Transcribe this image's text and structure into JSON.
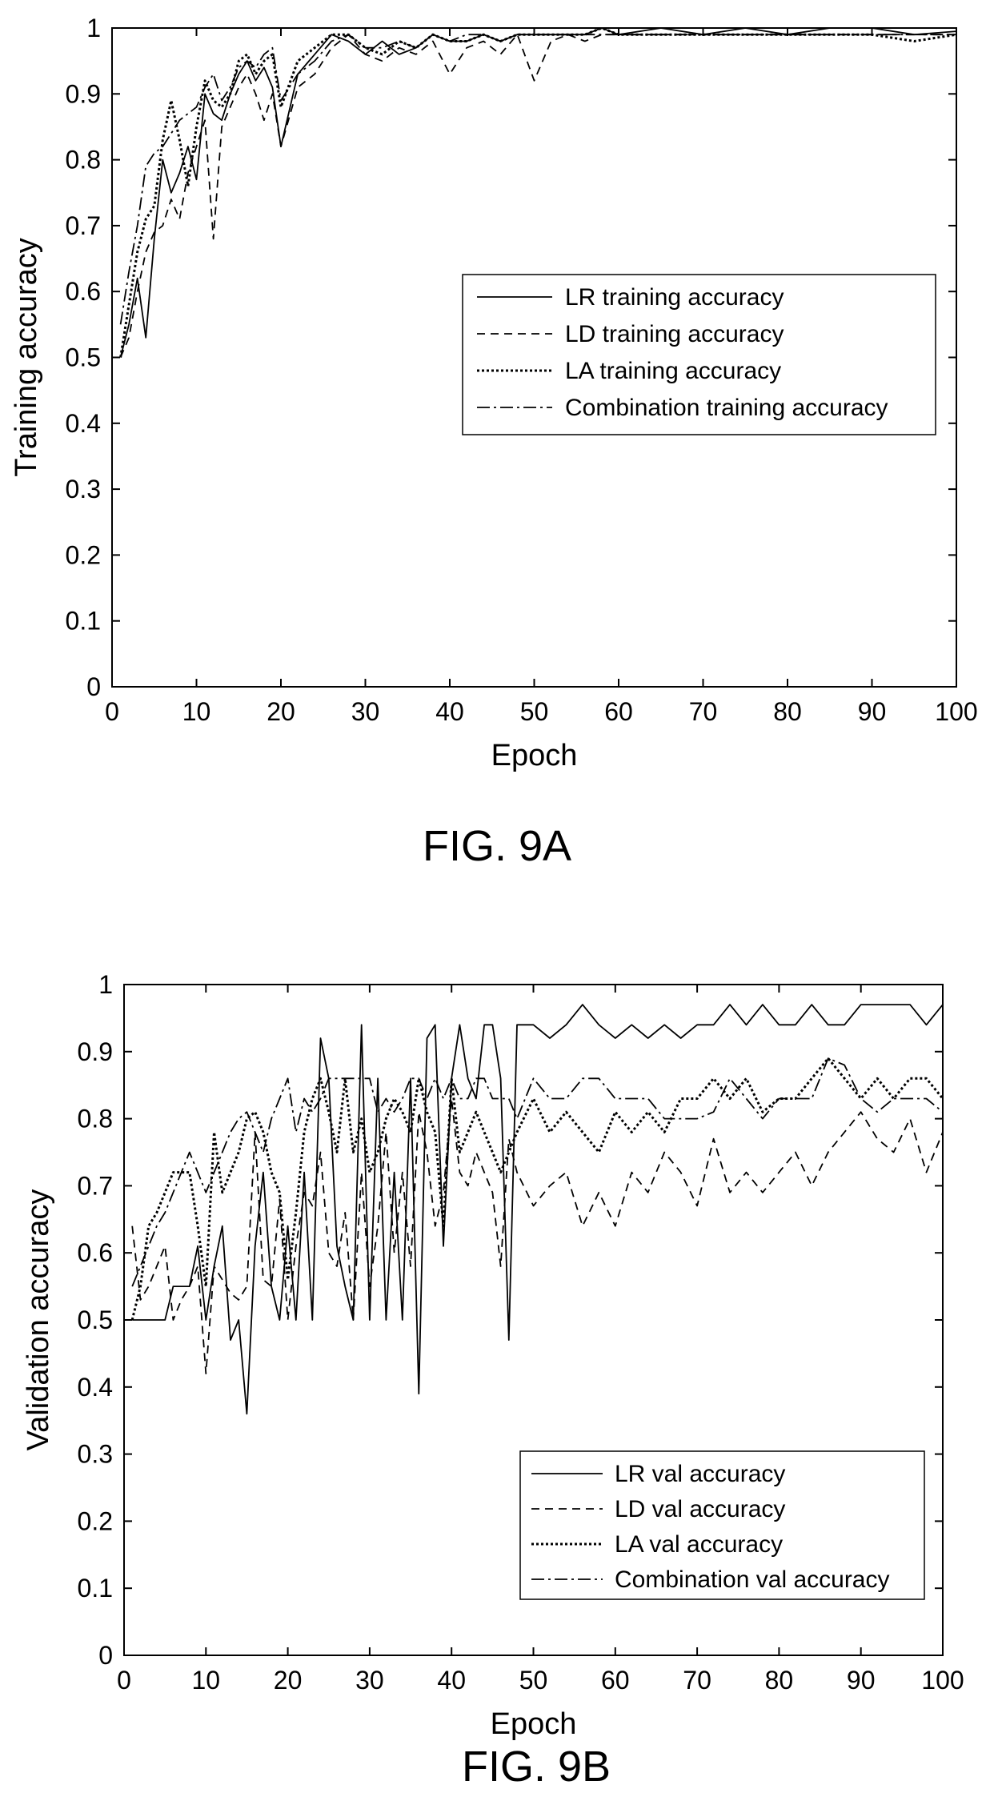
{
  "chart_data": [
    {
      "type": "line",
      "caption": "FIG. 9A",
      "xlabel": "Epoch",
      "ylabel": "Training accuracy",
      "xlim": [
        0,
        100
      ],
      "ylim": [
        0,
        1
      ],
      "xticks": [
        0,
        10,
        20,
        30,
        40,
        50,
        60,
        70,
        80,
        90,
        100
      ],
      "yticks": [
        0,
        0.1,
        0.2,
        0.3,
        0.4,
        0.5,
        0.6,
        0.7,
        0.8,
        0.9,
        1
      ],
      "xtick_labels": [
        "0",
        "10",
        "20",
        "30",
        "40",
        "50",
        "60",
        "70",
        "80",
        "90",
        "100"
      ],
      "ytick_labels": [
        "0",
        "0.1",
        "0.2",
        "0.3",
        "0.4",
        "0.5",
        "0.6",
        "0.7",
        "0.8",
        "0.9",
        "1"
      ],
      "grid": false,
      "legend_position": "center-right",
      "x": [
        1,
        2,
        3,
        4,
        5,
        6,
        7,
        8,
        9,
        10,
        11,
        12,
        13,
        14,
        15,
        16,
        17,
        18,
        19,
        20,
        22,
        24,
        26,
        28,
        30,
        32,
        34,
        36,
        38,
        40,
        42,
        44,
        46,
        48,
        50,
        52,
        54,
        56,
        58,
        60,
        65,
        70,
        75,
        80,
        85,
        90,
        95,
        100
      ],
      "series": [
        {
          "name": "LR training accuracy",
          "dash": "none",
          "values": [
            0.5,
            0.55,
            0.62,
            0.53,
            0.68,
            0.8,
            0.75,
            0.78,
            0.82,
            0.77,
            0.9,
            0.87,
            0.86,
            0.9,
            0.93,
            0.95,
            0.92,
            0.94,
            0.91,
            0.82,
            0.93,
            0.96,
            0.99,
            0.98,
            0.96,
            0.98,
            0.96,
            0.97,
            0.99,
            0.98,
            0.98,
            0.99,
            0.98,
            0.99,
            0.99,
            0.99,
            0.99,
            0.99,
            1.0,
            0.99,
            1.0,
            0.99,
            1.0,
            0.99,
            1.0,
            1.0,
            0.99,
            0.995
          ]
        },
        {
          "name": "LD training accuracy",
          "dash": "10,7",
          "values": [
            0.5,
            0.53,
            0.6,
            0.66,
            0.69,
            0.7,
            0.74,
            0.71,
            0.78,
            0.82,
            0.86,
            0.68,
            0.85,
            0.88,
            0.91,
            0.93,
            0.9,
            0.86,
            0.9,
            0.82,
            0.91,
            0.93,
            0.97,
            0.99,
            0.96,
            0.95,
            0.97,
            0.96,
            0.98,
            0.93,
            0.97,
            0.98,
            0.96,
            0.99,
            0.92,
            0.98,
            0.99,
            0.98,
            0.99,
            0.99,
            0.99,
            0.99,
            0.99,
            0.99,
            0.99,
            0.99,
            0.99,
            0.99
          ]
        },
        {
          "name": "LA training accuracy",
          "dash": "3,3",
          "values": [
            0.5,
            0.58,
            0.66,
            0.71,
            0.73,
            0.83,
            0.89,
            0.83,
            0.76,
            0.85,
            0.92,
            0.89,
            0.88,
            0.9,
            0.95,
            0.96,
            0.93,
            0.95,
            0.96,
            0.88,
            0.95,
            0.97,
            0.99,
            0.99,
            0.97,
            0.96,
            0.98,
            0.97,
            0.99,
            0.98,
            0.98,
            0.99,
            0.98,
            0.99,
            0.99,
            0.99,
            0.99,
            0.99,
            1.0,
            0.99,
            0.99,
            0.99,
            0.99,
            0.99,
            0.99,
            0.99,
            0.98,
            0.99
          ]
        },
        {
          "name": "Combination training accuracy",
          "dash": "16,5,3,5",
          "values": [
            0.55,
            0.63,
            0.7,
            0.79,
            0.81,
            0.82,
            0.84,
            0.86,
            0.87,
            0.88,
            0.91,
            0.93,
            0.89,
            0.91,
            0.94,
            0.95,
            0.94,
            0.96,
            0.97,
            0.89,
            0.93,
            0.95,
            0.98,
            0.99,
            0.97,
            0.97,
            0.98,
            0.97,
            0.99,
            0.98,
            0.99,
            0.99,
            0.98,
            0.99,
            0.99,
            0.99,
            0.99,
            0.99,
            0.99,
            0.99,
            0.99,
            0.99,
            0.99,
            0.99,
            0.99,
            0.99,
            0.99,
            0.99
          ]
        }
      ]
    },
    {
      "type": "line",
      "caption": "FIG. 9B",
      "xlabel": "Epoch",
      "ylabel": "Validation accuracy",
      "xlim": [
        0,
        100
      ],
      "ylim": [
        0,
        1
      ],
      "xticks": [
        0,
        10,
        20,
        30,
        40,
        50,
        60,
        70,
        80,
        90,
        100
      ],
      "yticks": [
        0,
        0.1,
        0.2,
        0.3,
        0.4,
        0.5,
        0.6,
        0.7,
        0.8,
        0.9,
        1
      ],
      "xtick_labels": [
        "0",
        "10",
        "20",
        "30",
        "40",
        "50",
        "60",
        "70",
        "80",
        "90",
        "100"
      ],
      "ytick_labels": [
        "0",
        "0.1",
        "0.2",
        "0.3",
        "0.4",
        "0.5",
        "0.6",
        "0.7",
        "0.8",
        "0.9",
        "1"
      ],
      "grid": false,
      "legend_position": "bottom-right",
      "x": [
        1,
        2,
        3,
        4,
        5,
        6,
        7,
        8,
        9,
        10,
        11,
        12,
        13,
        14,
        15,
        16,
        17,
        18,
        19,
        20,
        21,
        22,
        23,
        24,
        25,
        26,
        27,
        28,
        29,
        30,
        31,
        32,
        33,
        34,
        35,
        36,
        37,
        38,
        39,
        40,
        41,
        42,
        43,
        44,
        45,
        46,
        47,
        48,
        50,
        52,
        54,
        56,
        58,
        60,
        62,
        64,
        66,
        68,
        70,
        72,
        74,
        76,
        78,
        80,
        82,
        84,
        86,
        88,
        90,
        92,
        94,
        96,
        98,
        100
      ],
      "series": [
        {
          "name": "LR val accuracy",
          "dash": "none",
          "values": [
            0.5,
            0.5,
            0.5,
            0.5,
            0.5,
            0.55,
            0.55,
            0.55,
            0.61,
            0.5,
            0.58,
            0.64,
            0.47,
            0.5,
            0.36,
            0.61,
            0.72,
            0.55,
            0.5,
            0.64,
            0.5,
            0.72,
            0.5,
            0.92,
            0.86,
            0.61,
            0.55,
            0.5,
            0.94,
            0.5,
            0.86,
            0.5,
            0.72,
            0.5,
            0.86,
            0.39,
            0.92,
            0.94,
            0.61,
            0.86,
            0.94,
            0.86,
            0.83,
            0.94,
            0.94,
            0.86,
            0.47,
            0.94,
            0.94,
            0.92,
            0.94,
            0.97,
            0.94,
            0.92,
            0.94,
            0.92,
            0.94,
            0.92,
            0.94,
            0.94,
            0.97,
            0.94,
            0.97,
            0.94,
            0.94,
            0.97,
            0.94,
            0.94,
            0.97,
            0.97,
            0.97,
            0.97,
            0.94,
            0.97
          ]
        },
        {
          "name": "LD val accuracy",
          "dash": "10,7",
          "values": [
            0.64,
            0.53,
            0.55,
            0.58,
            0.61,
            0.5,
            0.53,
            0.55,
            0.58,
            0.42,
            0.58,
            0.56,
            0.54,
            0.53,
            0.55,
            0.78,
            0.56,
            0.55,
            0.68,
            0.5,
            0.61,
            0.69,
            0.67,
            0.75,
            0.6,
            0.58,
            0.66,
            0.5,
            0.72,
            0.55,
            0.64,
            0.78,
            0.6,
            0.72,
            0.58,
            0.81,
            0.75,
            0.64,
            0.69,
            0.83,
            0.72,
            0.7,
            0.75,
            0.72,
            0.69,
            0.58,
            0.77,
            0.72,
            0.67,
            0.7,
            0.72,
            0.64,
            0.69,
            0.64,
            0.72,
            0.69,
            0.75,
            0.72,
            0.67,
            0.77,
            0.69,
            0.72,
            0.69,
            0.72,
            0.75,
            0.7,
            0.75,
            0.78,
            0.81,
            0.77,
            0.75,
            0.8,
            0.72,
            0.78
          ]
        },
        {
          "name": "LA val accuracy",
          "dash": "3,3",
          "values": [
            0.5,
            0.55,
            0.64,
            0.66,
            0.69,
            0.72,
            0.72,
            0.72,
            0.64,
            0.55,
            0.78,
            0.69,
            0.72,
            0.75,
            0.8,
            0.81,
            0.78,
            0.72,
            0.69,
            0.56,
            0.66,
            0.78,
            0.83,
            0.86,
            0.81,
            0.75,
            0.86,
            0.75,
            0.8,
            0.72,
            0.75,
            0.8,
            0.83,
            0.81,
            0.78,
            0.86,
            0.81,
            0.78,
            0.64,
            0.86,
            0.75,
            0.78,
            0.81,
            0.78,
            0.75,
            0.72,
            0.75,
            0.78,
            0.83,
            0.78,
            0.81,
            0.78,
            0.75,
            0.81,
            0.78,
            0.81,
            0.78,
            0.83,
            0.83,
            0.86,
            0.83,
            0.86,
            0.81,
            0.83,
            0.83,
            0.86,
            0.89,
            0.86,
            0.83,
            0.86,
            0.83,
            0.86,
            0.86,
            0.83
          ]
        },
        {
          "name": "Combination val accuracy",
          "dash": "16,5,3,5",
          "values": [
            0.55,
            0.58,
            0.61,
            0.64,
            0.66,
            0.69,
            0.72,
            0.75,
            0.72,
            0.69,
            0.72,
            0.75,
            0.78,
            0.8,
            0.81,
            0.78,
            0.75,
            0.8,
            0.83,
            0.86,
            0.78,
            0.83,
            0.81,
            0.83,
            0.86,
            0.86,
            0.86,
            0.86,
            0.86,
            0.86,
            0.81,
            0.83,
            0.81,
            0.83,
            0.86,
            0.86,
            0.83,
            0.86,
            0.83,
            0.86,
            0.83,
            0.83,
            0.86,
            0.86,
            0.83,
            0.83,
            0.83,
            0.8,
            0.86,
            0.83,
            0.83,
            0.86,
            0.86,
            0.83,
            0.83,
            0.83,
            0.8,
            0.8,
            0.8,
            0.81,
            0.86,
            0.83,
            0.8,
            0.83,
            0.83,
            0.83,
            0.89,
            0.88,
            0.83,
            0.81,
            0.83,
            0.83,
            0.83,
            0.81
          ]
        }
      ]
    }
  ]
}
